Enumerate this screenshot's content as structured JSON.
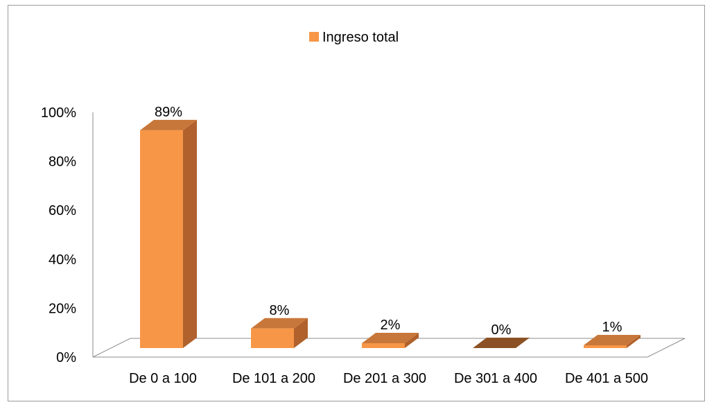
{
  "chart_data": {
    "type": "bar",
    "title": "",
    "xlabel": "",
    "ylabel": "",
    "categories": [
      "De 0 a 100",
      "De 101 a 200",
      "De 201 a 300",
      "De 301 a 400",
      "De 401 a 500"
    ],
    "series": [
      {
        "name": "Ingreso total",
        "values": [
          89,
          8,
          2,
          0,
          1
        ],
        "data_labels": [
          "89%",
          "8%",
          "2%",
          "0%",
          "1%"
        ]
      }
    ],
    "y_ticks": [
      0,
      20,
      40,
      60,
      80,
      100
    ],
    "y_tick_labels": [
      "0%",
      "20%",
      "40%",
      "60%",
      "80%",
      "100%"
    ],
    "ylim": [
      0,
      100
    ],
    "grid": false,
    "legend_position": "top",
    "style": "3d-column",
    "colors": {
      "front": "#F79646",
      "side": "#B0612C",
      "top": "#C8773A",
      "zero_top": "#8B5124",
      "axis": "#8c8c8c"
    }
  }
}
